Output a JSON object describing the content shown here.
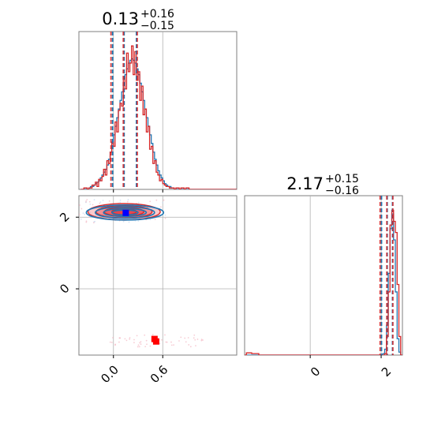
{
  "chart_data": [
    {
      "type": "histogram",
      "panel": "marginal-param-1",
      "title": {
        "value": "0.13",
        "plus": "+0.16",
        "minus": "−0.15"
      },
      "xlim": [
        -0.42,
        1.5
      ],
      "x_ticks": [
        0.0,
        0.6
      ],
      "x_tick_labels": [
        "0.0",
        "0.6"
      ],
      "quantile_lines_blue": [
        -0.01,
        0.13,
        0.28
      ],
      "quantile_lines_red": [
        -0.03,
        0.12,
        0.29
      ],
      "bin_edges_start": -0.4,
      "bin_width": 0.02,
      "series": [
        {
          "name": "",
          "color": "#1f77b4",
          "counts": [
            0,
            0,
            0,
            0,
            0,
            1,
            2,
            2,
            3,
            4,
            5,
            6,
            8,
            10,
            12,
            14,
            17,
            21,
            26,
            32,
            38,
            44,
            50,
            56,
            62,
            68,
            74,
            80,
            84,
            88,
            90,
            91,
            90,
            88,
            84,
            80,
            74,
            68,
            62,
            56,
            50,
            44,
            38,
            32,
            26,
            21,
            17,
            13,
            10,
            8,
            6,
            4,
            3,
            2,
            2,
            1,
            1,
            0,
            0,
            0,
            0,
            0,
            0,
            0,
            0,
            0,
            0,
            0,
            0,
            0,
            0,
            0,
            0,
            0,
            0,
            0,
            0,
            0,
            0,
            0,
            0,
            0,
            0,
            0,
            0,
            0,
            0,
            0,
            0,
            0,
            0,
            0,
            0,
            0,
            0,
            0
          ]
        },
        {
          "name": "",
          "color": "#d62728",
          "counts": [
            0,
            0,
            1,
            1,
            0,
            1,
            1,
            3,
            3,
            5,
            2,
            7,
            6,
            9,
            14,
            10,
            20,
            18,
            26,
            33,
            30,
            47,
            40,
            55,
            60,
            58,
            78,
            70,
            95,
            82,
            88,
            100,
            80,
            96,
            76,
            82,
            62,
            72,
            52,
            56,
            40,
            44,
            28,
            30,
            18,
            20,
            12,
            10,
            6,
            7,
            4,
            3,
            2,
            2,
            1,
            1,
            1,
            0,
            1,
            1,
            0,
            1,
            1,
            0,
            1,
            1,
            0,
            0,
            0,
            0,
            0,
            0,
            0,
            0,
            0,
            0,
            0,
            0,
            0,
            0,
            0,
            0,
            0,
            0,
            0,
            0,
            0,
            0,
            0,
            0,
            0,
            0,
            0,
            0,
            0,
            0
          ]
        }
      ]
    },
    {
      "type": "contour",
      "panel": "joint-param-1-param-2",
      "xlim": [
        -0.42,
        1.5
      ],
      "ylim": [
        -1.85,
        2.6
      ],
      "x_ticks": [
        0.0,
        0.6
      ],
      "y_ticks": [
        0,
        2
      ],
      "x_tick_labels": [
        "0.0",
        "0.6"
      ],
      "y_tick_labels": [
        "0",
        "2"
      ],
      "grid": true,
      "markers": [
        {
          "color": "#0000ff",
          "x": 0.15,
          "y": 2.12
        },
        {
          "color": "#ff0000",
          "x": 0.5,
          "y": -1.4
        },
        {
          "color": "#ff0000",
          "x": 0.52,
          "y": -1.47
        }
      ],
      "contour_center": {
        "x": 0.13,
        "y": 2.17
      }
    },
    {
      "type": "histogram",
      "panel": "marginal-param-2",
      "title": {
        "value": "2.17",
        "plus": "+0.15",
        "minus": "−0.16"
      },
      "xlim": [
        -1.85,
        2.6
      ],
      "x_ticks": [
        0,
        2
      ],
      "x_tick_labels": [
        "0",
        "2"
      ],
      "quantile_lines_blue": [
        2.01,
        2.17,
        2.32
      ],
      "quantile_lines_red": [
        1.97,
        2.16,
        2.33
      ],
      "bin_edges_start": -1.85,
      "bin_width": 0.05,
      "series": [
        {
          "name": "",
          "color": "#1f77b4",
          "counts": [
            0,
            0,
            0,
            0,
            0,
            0,
            0,
            0,
            0,
            0,
            0,
            0,
            0,
            0,
            0,
            0,
            0,
            0,
            0,
            0,
            0,
            0,
            0,
            0,
            0,
            0,
            0,
            0,
            0,
            0,
            0,
            0,
            0,
            0,
            0,
            0,
            0,
            0,
            0,
            0,
            0,
            0,
            0,
            0,
            0,
            0,
            0,
            0,
            0,
            0,
            0,
            0,
            0,
            0,
            0,
            0,
            0,
            0,
            0,
            0,
            0,
            0,
            0,
            0,
            0,
            0,
            0,
            0,
            0,
            0,
            0,
            0,
            0,
            0,
            0,
            0,
            0,
            0,
            2,
            8,
            40,
            110,
            170,
            190,
            155,
            85,
            22,
            4,
            0
          ]
        },
        {
          "name": "",
          "color": "#d62728",
          "counts": [
            0,
            3,
            3,
            3,
            2,
            2,
            2,
            2,
            0,
            0,
            0,
            0,
            0,
            0,
            0,
            0,
            0,
            0,
            0,
            0,
            0,
            0,
            0,
            0,
            0,
            0,
            0,
            0,
            0,
            0,
            0,
            0,
            0,
            0,
            0,
            0,
            0,
            0,
            0,
            0,
            0,
            0,
            0,
            0,
            0,
            0,
            0,
            0,
            0,
            0,
            0,
            0,
            0,
            0,
            0,
            0,
            0,
            0,
            0,
            0,
            0,
            0,
            0,
            0,
            0,
            0,
            0,
            0,
            0,
            0,
            0,
            0,
            0,
            0,
            0,
            0,
            0,
            0,
            0,
            2,
            25,
            85,
            175,
            195,
            180,
            165,
            95,
            25,
            0
          ]
        }
      ]
    }
  ]
}
